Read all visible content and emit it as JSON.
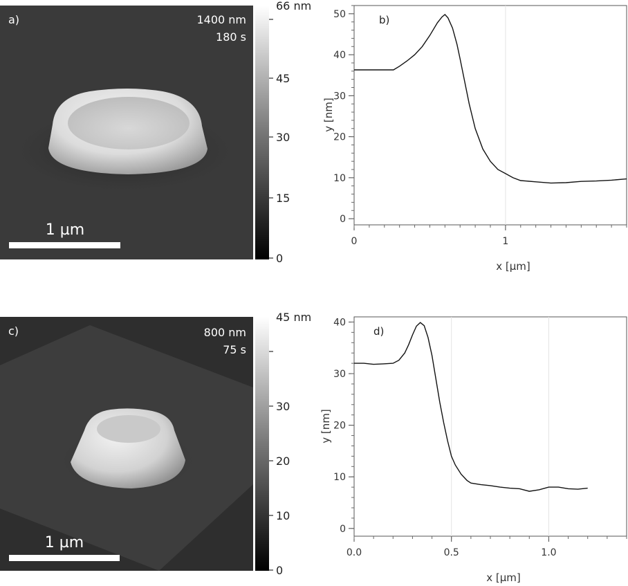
{
  "panels": {
    "a": {
      "label": "a)",
      "info_lines": [
        "1400 nm",
        "180 s"
      ],
      "scale_bar_label": "1 µm",
      "colorbar": {
        "top_label": "66 nm",
        "ticks": [
          "45",
          "30",
          "15",
          "0"
        ]
      }
    },
    "c": {
      "label": "c)",
      "info_lines": [
        "800 nm",
        "75 s"
      ],
      "scale_bar_label": "1 µm",
      "colorbar": {
        "top_label": "45 nm",
        "ticks": [
          "30",
          "20",
          "10",
          "0"
        ]
      }
    }
  },
  "chart_data": [
    {
      "type": "line",
      "panel_label": "b)",
      "xlabel": "x [µm]",
      "ylabel": "y [nm]",
      "xlim": [
        0,
        1.8
      ],
      "ylim": [
        -1.5,
        52
      ],
      "xticks": [
        0,
        1
      ],
      "xtick_labels": [
        "0",
        "1"
      ],
      "yticks": [
        0,
        10,
        20,
        30,
        40,
        50
      ],
      "ytick_labels": [
        "0",
        "10",
        "20",
        "30",
        "40",
        "50"
      ],
      "grid": true,
      "series": [
        {
          "x": [
            0,
            0.1,
            0.2,
            0.26,
            0.3,
            0.35,
            0.4,
            0.45,
            0.5,
            0.55,
            0.58,
            0.6,
            0.62,
            0.65,
            0.68,
            0.7,
            0.73,
            0.76,
            0.8,
            0.85,
            0.9,
            0.95,
            1.0,
            1.05,
            1.1,
            1.2,
            1.3,
            1.4,
            1.5,
            1.6,
            1.7,
            1.8
          ],
          "y": [
            36.3,
            36.3,
            36.3,
            36.3,
            37.2,
            38.5,
            40.0,
            42.0,
            44.7,
            47.8,
            49.2,
            49.8,
            49.0,
            46.5,
            42.5,
            39.0,
            33.5,
            28.0,
            22.0,
            17.0,
            14.0,
            12.0,
            11.0,
            10.0,
            9.3,
            9.0,
            8.7,
            8.8,
            9.1,
            9.2,
            9.4,
            9.7
          ]
        }
      ]
    },
    {
      "type": "line",
      "panel_label": "d)",
      "xlabel": "x [µm]",
      "ylabel": "y [nm]",
      "xlim": [
        0,
        1.4
      ],
      "ylim": [
        -1.5,
        41
      ],
      "xticks": [
        0,
        0.5,
        1.0
      ],
      "xtick_labels": [
        "0.0",
        "0.5",
        "1.0"
      ],
      "yticks": [
        0,
        10,
        20,
        30,
        40
      ],
      "ytick_labels": [
        "0",
        "10",
        "20",
        "30",
        "40"
      ],
      "grid": true,
      "series": [
        {
          "x": [
            0,
            0.05,
            0.1,
            0.15,
            0.2,
            0.23,
            0.26,
            0.28,
            0.3,
            0.32,
            0.34,
            0.36,
            0.38,
            0.4,
            0.42,
            0.44,
            0.46,
            0.48,
            0.5,
            0.52,
            0.55,
            0.58,
            0.6,
            0.65,
            0.7,
            0.75,
            0.8,
            0.85,
            0.9,
            0.95,
            1.0,
            1.05,
            1.1,
            1.15,
            1.2
          ],
          "y": [
            32.0,
            32.0,
            31.8,
            31.9,
            32.0,
            32.6,
            34.0,
            35.6,
            37.5,
            39.2,
            39.9,
            39.3,
            37.0,
            33.5,
            29.0,
            24.5,
            20.5,
            17.0,
            14.0,
            12.3,
            10.5,
            9.3,
            8.8,
            8.5,
            8.3,
            8.0,
            7.8,
            7.7,
            7.2,
            7.5,
            8.0,
            8.0,
            7.7,
            7.6,
            7.8
          ]
        }
      ]
    }
  ]
}
